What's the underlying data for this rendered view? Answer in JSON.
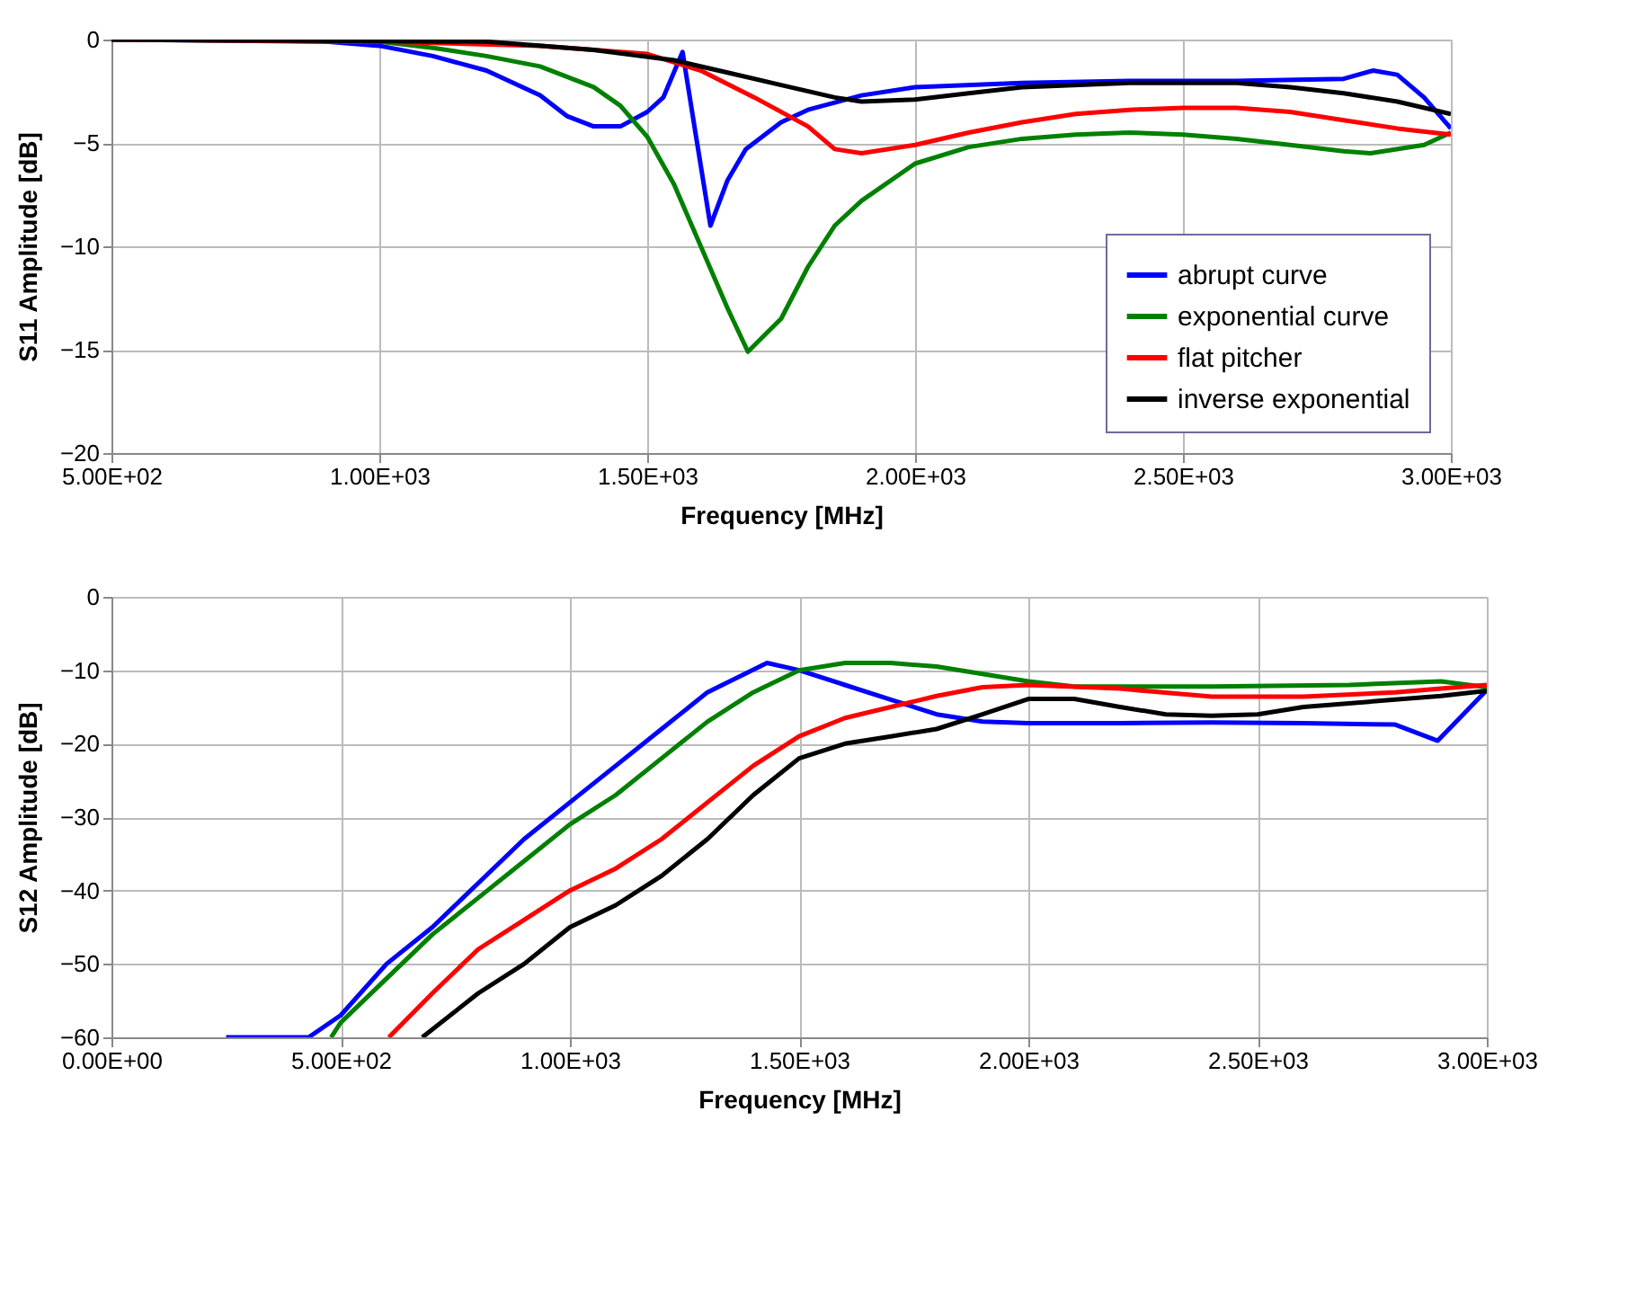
{
  "chart_data": [
    {
      "type": "line",
      "xlabel": "Frequency [MHz]",
      "ylabel": "S11 Amplitude [dB]",
      "xlim": [
        500,
        3000
      ],
      "ylim": [
        -20,
        0
      ],
      "xticks": [
        {
          "value": 500,
          "label": "5.00E+02"
        },
        {
          "value": 1000,
          "label": "1.00E+03"
        },
        {
          "value": 1500,
          "label": "1.50E+03"
        },
        {
          "value": 2000,
          "label": "2.00E+03"
        },
        {
          "value": 2500,
          "label": "2.50E+03"
        },
        {
          "value": 3000,
          "label": "3.00E+03"
        }
      ],
      "yticks": [
        -20,
        -15,
        -10,
        -5,
        0
      ],
      "grid": true,
      "legend": "bottom right",
      "marker": "none",
      "line_style": "solid",
      "series": [
        {
          "name": "abrupt curve",
          "color": "#0000ff",
          "x": [
            500,
            900,
            1000,
            1100,
            1200,
            1300,
            1350,
            1400,
            1450,
            1500,
            1530,
            1566,
            1590,
            1618,
            1650,
            1684,
            1750,
            1800,
            1900,
            2000,
            2200,
            2400,
            2600,
            2800,
            2855,
            2900,
            2950,
            3000
          ],
          "values": [
            0,
            -0.1,
            -0.3,
            -0.8,
            -1.5,
            -2.7,
            -3.7,
            -4.2,
            -4.2,
            -3.5,
            -2.8,
            -0.6,
            -4.5,
            -9.0,
            -6.8,
            -5.3,
            -4.0,
            -3.4,
            -2.7,
            -2.3,
            -2.1,
            -2.0,
            -2.0,
            -1.9,
            -1.5,
            -1.7,
            -2.8,
            -4.3
          ]
        },
        {
          "name": "exponential curve",
          "color": "#008000",
          "x": [
            500,
            1000,
            1100,
            1200,
            1300,
            1400,
            1450,
            1500,
            1550,
            1600,
            1650,
            1688,
            1750,
            1800,
            1850,
            1900,
            2000,
            2100,
            2200,
            2300,
            2400,
            2500,
            2600,
            2700,
            2800,
            2850,
            2950,
            3000
          ],
          "values": [
            0,
            -0.1,
            -0.4,
            -0.8,
            -1.3,
            -2.3,
            -3.2,
            -4.7,
            -7.0,
            -10.0,
            -13.0,
            -15.1,
            -13.5,
            -11.0,
            -9.0,
            -7.8,
            -6.0,
            -5.2,
            -4.8,
            -4.6,
            -4.5,
            -4.6,
            -4.8,
            -5.1,
            -5.4,
            -5.5,
            -5.1,
            -4.5
          ]
        },
        {
          "name": "flat pitcher",
          "color": "#ff0000",
          "x": [
            500,
            1000,
            1300,
            1500,
            1600,
            1700,
            1800,
            1850,
            1900,
            2000,
            2100,
            2200,
            2300,
            2400,
            2500,
            2600,
            2700,
            2800,
            2900,
            3000
          ],
          "values": [
            0,
            -0.1,
            -0.3,
            -0.7,
            -1.5,
            -2.8,
            -4.2,
            -5.3,
            -5.5,
            -5.1,
            -4.5,
            -4.0,
            -3.6,
            -3.4,
            -3.3,
            -3.3,
            -3.5,
            -3.9,
            -4.3,
            -4.6
          ]
        },
        {
          "name": "inverse exponential",
          "color": "#000000",
          "x": [
            500,
            1200,
            1400,
            1550,
            1650,
            1750,
            1850,
            1900,
            2000,
            2100,
            2200,
            2400,
            2600,
            2700,
            2800,
            2900,
            3000
          ],
          "values": [
            0,
            -0.1,
            -0.5,
            -1.0,
            -1.6,
            -2.2,
            -2.8,
            -3.0,
            -2.9,
            -2.6,
            -2.3,
            -2.1,
            -2.1,
            -2.3,
            -2.6,
            -3.0,
            -3.6
          ]
        }
      ]
    },
    {
      "type": "line",
      "xlabel": "Frequency [MHz]",
      "ylabel": "S12 Amplitude [dB]",
      "xlim": [
        0,
        3000
      ],
      "ylim": [
        -60,
        0
      ],
      "xticks": [
        {
          "value": 0,
          "label": "0.00E+00"
        },
        {
          "value": 500,
          "label": "5.00E+02"
        },
        {
          "value": 1000,
          "label": "1.00E+03"
        },
        {
          "value": 1500,
          "label": "1.50E+03"
        },
        {
          "value": 2000,
          "label": "2.00E+03"
        },
        {
          "value": 2500,
          "label": "2.50E+03"
        },
        {
          "value": 3000,
          "label": "3.00E+03"
        }
      ],
      "yticks": [
        -60,
        -50,
        -40,
        -30,
        -20,
        -10,
        0
      ],
      "grid": true,
      "marker": "none",
      "line_style": "solid",
      "series": [
        {
          "color": "#0000ff",
          "x": [
            250,
            430,
            500,
            600,
            700,
            800,
            900,
            1000,
            1100,
            1200,
            1300,
            1430,
            1500,
            1600,
            1700,
            1800,
            1900,
            2000,
            2200,
            2400,
            2600,
            2800,
            2893,
            3000
          ],
          "values": [
            -60,
            -60,
            -57,
            -50,
            -45,
            -39,
            -33,
            -28,
            -23,
            -18,
            -13,
            -9.0,
            -10,
            -12,
            -14,
            -16,
            -17,
            -17.2,
            -17.2,
            -17.1,
            -17.2,
            -17.4,
            -19.6,
            -12.7
          ]
        },
        {
          "color": "#008000",
          "x": [
            479,
            500,
            600,
            700,
            800,
            900,
            1000,
            1100,
            1200,
            1300,
            1400,
            1500,
            1600,
            1700,
            1800,
            1900,
            2000,
            2100,
            2400,
            2700,
            2900,
            3000
          ],
          "values": [
            -60,
            -58,
            -52,
            -46,
            -41,
            -36,
            -31,
            -27,
            -22,
            -17,
            -13,
            -10,
            -9,
            -9,
            -9.5,
            -10.5,
            -11.5,
            -12.2,
            -12.2,
            -12.0,
            -11.5,
            -12.3
          ]
        },
        {
          "color": "#ff0000",
          "x": [
            605,
            700,
            800,
            900,
            1000,
            1100,
            1200,
            1300,
            1400,
            1500,
            1600,
            1700,
            1800,
            1900,
            2000,
            2200,
            2400,
            2500,
            2600,
            2800,
            2900,
            3000
          ],
          "values": [
            -60,
            -54,
            -48,
            -44,
            -40,
            -37,
            -33,
            -28,
            -23,
            -19,
            -16.5,
            -15,
            -13.5,
            -12.3,
            -12,
            -12.5,
            -13.6,
            -13.6,
            -13.6,
            -13,
            -12.5,
            -12
          ]
        },
        {
          "color": "#000000",
          "x": [
            678,
            800,
            900,
            1000,
            1100,
            1200,
            1300,
            1400,
            1500,
            1600,
            1700,
            1800,
            1900,
            2000,
            2100,
            2200,
            2300,
            2400,
            2500,
            2600,
            2800,
            2900,
            3000
          ],
          "values": [
            -60,
            -54,
            -50,
            -45,
            -42,
            -38,
            -33,
            -27,
            -22,
            -20,
            -19,
            -18,
            -16,
            -13.9,
            -13.9,
            -15,
            -16,
            -16.2,
            -16,
            -15,
            -14,
            -13.5,
            -12.8
          ]
        }
      ]
    }
  ]
}
